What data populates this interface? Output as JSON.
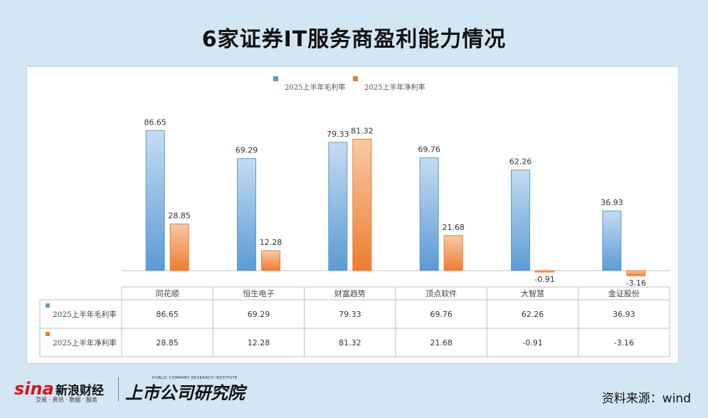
{
  "title": "6家证券IT服务商盈利能力情况",
  "source": "资料来源：wind",
  "logos": {
    "sina": "sina",
    "sina_cn": "新浪财经",
    "sina_sub": "交易 · 资讯 · 数据 · 服务",
    "research": "上市公司研究院",
    "research_en": "PUBLIC COMPANY RESEARCH INSTITUTE"
  },
  "colors": {
    "gross": "#5b9bd5",
    "net": "#ed7d31"
  },
  "chart_data": {
    "type": "bar",
    "categories": [
      "同花顺",
      "恒生电子",
      "财富趋势",
      "顶点软件",
      "大智慧",
      "金证股份"
    ],
    "series": [
      {
        "name": "2025上半年毛利率",
        "values": [
          86.65,
          69.29,
          79.33,
          69.76,
          62.26,
          36.93
        ]
      },
      {
        "name": "2025上半年净利率",
        "values": [
          28.85,
          12.28,
          81.32,
          21.68,
          -0.91,
          -3.16
        ]
      }
    ],
    "value_labels": [
      [
        "86.65",
        "69.29",
        "79.33",
        "69.76",
        "62.26",
        "36.93"
      ],
      [
        "28.85",
        "12.28",
        "81.32",
        "21.68",
        "-0.91",
        "-3.16"
      ]
    ],
    "legend": "top",
    "grid": false,
    "ylim": [
      -5,
      90
    ]
  }
}
